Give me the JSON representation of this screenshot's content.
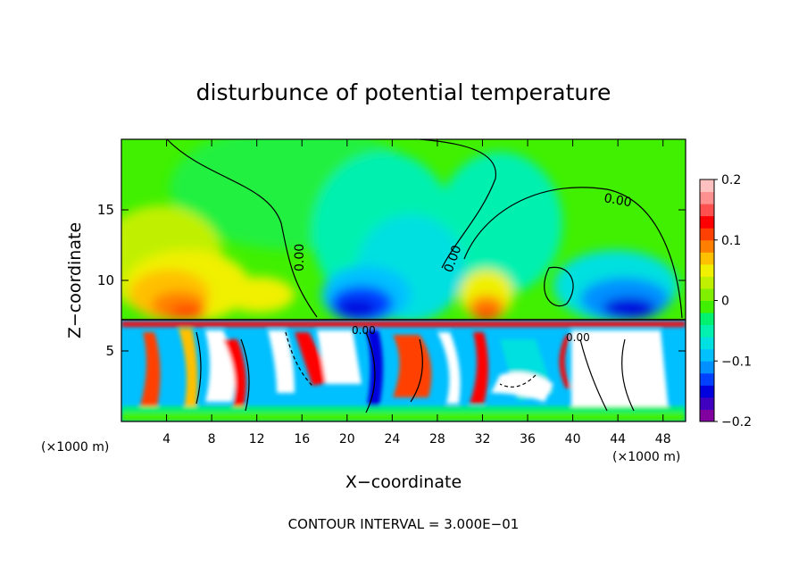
{
  "chart_data": {
    "type": "heatmap",
    "title": "disturbunce of potential temperature",
    "xlabel": "X−coordinate",
    "ylabel": "Z−coordinate",
    "xlim": [
      0,
      50
    ],
    "ylim": [
      0,
      20
    ],
    "x_ticks": [
      4,
      8,
      12,
      16,
      20,
      24,
      28,
      32,
      36,
      40,
      44,
      48
    ],
    "y_ticks": [
      5,
      10,
      15
    ],
    "x_unit_left": "(×1000 m)",
    "x_unit_right": "(×1000 m)",
    "colorbar": {
      "vmin": -0.2,
      "vmax": 0.2,
      "tick_labels": [
        "0.2",
        "0.1",
        "0",
        "−0.1",
        "−0.2"
      ],
      "tick_values": [
        0.2,
        0.1,
        0,
        -0.1,
        -0.2
      ],
      "colors": [
        "#8000a0",
        "#4000c0",
        "#0000dd",
        "#0040ff",
        "#0090ff",
        "#00c0ff",
        "#00e0e0",
        "#00f0b0",
        "#00f070",
        "#40f000",
        "#80f000",
        "#c0f000",
        "#f0f000",
        "#ffc000",
        "#ff8000",
        "#ff4000",
        "#ff0000",
        "#ff5050",
        "#ff9090",
        "#ffc0c0"
      ]
    },
    "contour_label": "0.00",
    "contour_labels_shown": [
      "0.00",
      "0.00",
      "0.00",
      "0.00",
      "0.00"
    ],
    "annotation": "CONTOUR INTERVAL = 3.000E−01"
  }
}
